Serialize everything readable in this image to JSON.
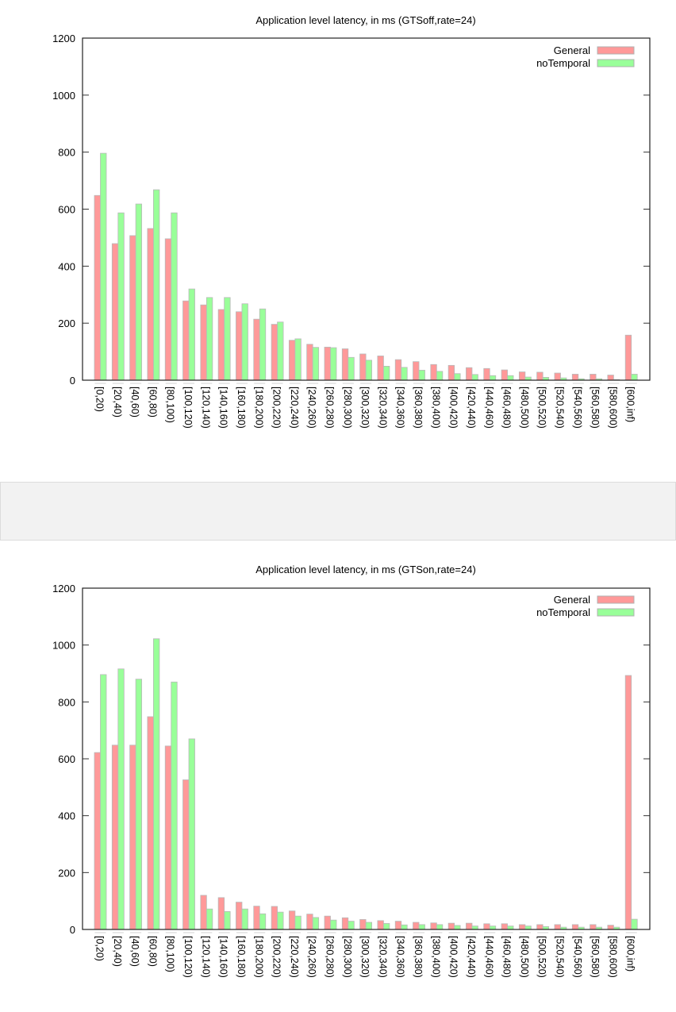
{
  "chart_data": [
    {
      "type": "bar",
      "title": "Application level latency, in ms (GTSoff,rate=24)",
      "xlabel": "",
      "ylabel": "",
      "ylim": [
        0,
        1200
      ],
      "yticks": [
        "0",
        "200",
        "400",
        "600",
        "800",
        "1000",
        "1200"
      ],
      "legend_position": "top-right",
      "categories": [
        "[0,20)",
        "[20,40)",
        "[40,60)",
        "[60,80)",
        "[80,100)",
        "[100,120)",
        "[120,140)",
        "[140,160)",
        "[160,180)",
        "[180,200)",
        "[200,220)",
        "[220,240)",
        "[240,260)",
        "[260,280)",
        "[280,300)",
        "[300,320)",
        "[320,340)",
        "[340,360)",
        "[360,380)",
        "[380,400)",
        "[400,420)",
        "[420,440)",
        "[440,460)",
        "[460,480)",
        "[480,500)",
        "[500,520)",
        "[520,540)",
        "[540,560)",
        "[560,580)",
        "[580,600)",
        "[600,inf)"
      ],
      "series": [
        {
          "name": "General",
          "color": "#ff9999",
          "values": [
            648,
            479,
            507,
            532,
            496,
            278,
            264,
            248,
            240,
            214,
            196,
            140,
            126,
            116,
            110,
            92,
            85,
            72,
            65,
            55,
            52,
            44,
            41,
            36,
            29,
            28,
            25,
            21,
            21,
            18,
            158
          ]
        },
        {
          "name": "noTemporal",
          "color": "#99ff99",
          "values": [
            796,
            587,
            618,
            668,
            587,
            320,
            290,
            290,
            268,
            250,
            204,
            145,
            115,
            114,
            80,
            70,
            49,
            45,
            35,
            31,
            23,
            20,
            16,
            16,
            11,
            10,
            8,
            5,
            5,
            2,
            21
          ]
        }
      ]
    },
    {
      "type": "bar",
      "title": "Application level latency, in ms (GTSon,rate=24)",
      "xlabel": "",
      "ylabel": "",
      "ylim": [
        0,
        1200
      ],
      "yticks": [
        "0",
        "200",
        "400",
        "600",
        "800",
        "1000",
        "1200"
      ],
      "legend_position": "top-right",
      "categories": [
        "[0,20)",
        "[20,40)",
        "[40,60)",
        "[60,80)",
        "[80,100)",
        "[100,120)",
        "[120,140)",
        "[140,160)",
        "[160,180)",
        "[180,200)",
        "[200,220)",
        "[220,240)",
        "[240,260)",
        "[260,280)",
        "[280,300)",
        "[300,320)",
        "[320,340)",
        "[340,360)",
        "[360,380)",
        "[380,400)",
        "[400,420)",
        "[420,440)",
        "[440,460)",
        "[460,480)",
        "[480,500)",
        "[500,520)",
        "[520,540)",
        "[540,560)",
        "[560,580)",
        "[580,600)",
        "[600,inf)"
      ],
      "series": [
        {
          "name": "General",
          "color": "#ff9999",
          "values": [
            622,
            648,
            648,
            748,
            645,
            526,
            120,
            112,
            96,
            82,
            81,
            65,
            54,
            47,
            41,
            35,
            31,
            29,
            25,
            23,
            22,
            22,
            20,
            20,
            17,
            17,
            17,
            17,
            17,
            15,
            893
          ]
        },
        {
          "name": "noTemporal",
          "color": "#99ff99",
          "values": [
            896,
            916,
            880,
            1022,
            870,
            670,
            72,
            63,
            72,
            55,
            61,
            47,
            42,
            33,
            29,
            25,
            21,
            16,
            17,
            17,
            14,
            12,
            12,
            12,
            12,
            10,
            8,
            8,
            8,
            8,
            36
          ]
        }
      ]
    }
  ]
}
